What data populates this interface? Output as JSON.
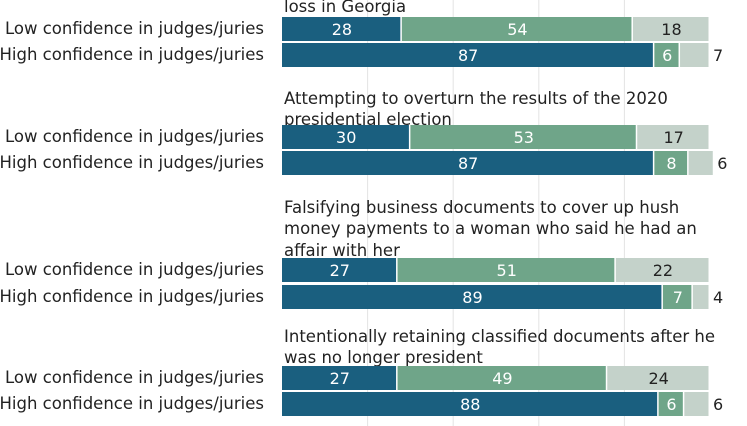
{
  "chart_data": {
    "type": "bar",
    "stacked": true,
    "orientation": "horizontal",
    "xlim": [
      0,
      100
    ],
    "grid": true,
    "colors": [
      "#1a5f7f",
      "#6fa589",
      "#c4d2ca"
    ],
    "groups": [
      {
        "title": "loss in Georgia",
        "rows": [
          {
            "label": "Low confidence in judges/juries",
            "values": [
              28,
              54,
              18
            ]
          },
          {
            "label": "High confidence in judges/juries",
            "values": [
              87,
              6,
              7
            ]
          }
        ]
      },
      {
        "title": "Attempting to overturn the results of the 2020 presidential election",
        "title_lines": [
          "Attempting to overturn the results of the 2020",
          "presidential election"
        ],
        "rows": [
          {
            "label": "Low confidence in judges/juries",
            "values": [
              30,
              53,
              17
            ]
          },
          {
            "label": "High confidence in judges/juries",
            "values": [
              87,
              8,
              6
            ]
          }
        ]
      },
      {
        "title": "Falsifying business documents to cover up hush money payments to a woman who said he had an affair with her",
        "title_lines": [
          "Falsifying business documents to cover up hush",
          "money payments to a woman who said he had an",
          "affair with her"
        ],
        "rows": [
          {
            "label": "Low confidence in judges/juries",
            "values": [
              27,
              51,
              22
            ]
          },
          {
            "label": "High confidence in judges/juries",
            "values": [
              89,
              7,
              4
            ]
          }
        ]
      },
      {
        "title": "Intentionally retaining classified documents after he was no longer president",
        "title_lines": [
          "Intentionally retaining classified documents after he",
          "was no longer president"
        ],
        "rows": [
          {
            "label": "Low confidence in judges/juries",
            "values": [
              27,
              49,
              24
            ]
          },
          {
            "label": "High confidence in judges/juries",
            "values": [
              88,
              6,
              6
            ]
          }
        ]
      }
    ]
  }
}
